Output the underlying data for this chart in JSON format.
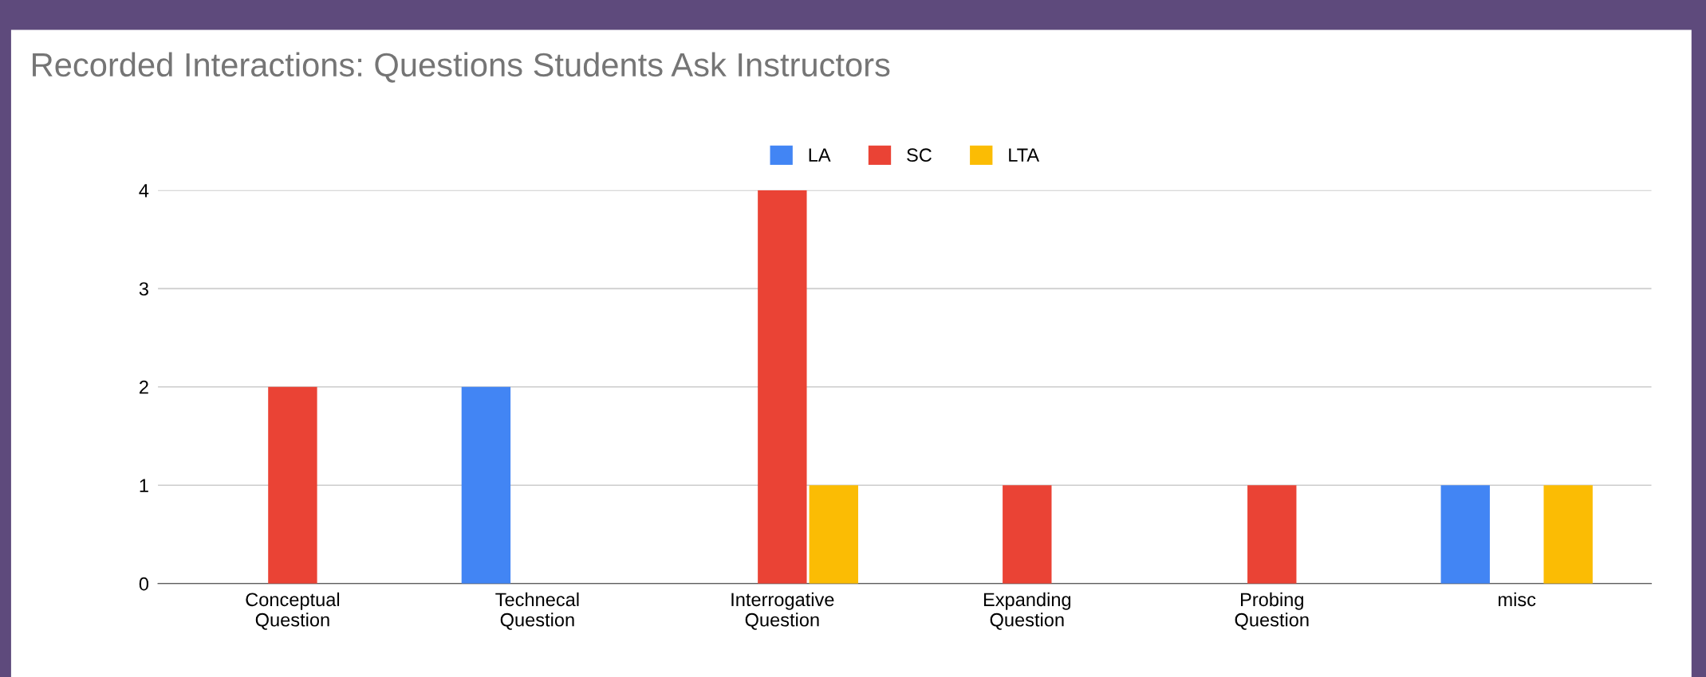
{
  "chart_data": {
    "type": "bar",
    "title": "Recorded Interactions: Questions Students Ask Instructors",
    "categories": [
      "Conceptual\nQuestion",
      "Technecal\nQuestion",
      "Interrogative\nQuestion",
      "Expanding\nQuestion",
      "Probing\nQuestion",
      "misc"
    ],
    "series": [
      {
        "name": "LA",
        "color": "#4285f4",
        "values": [
          0,
          2,
          0,
          0,
          0,
          1
        ]
      },
      {
        "name": "SC",
        "color": "#ea4335",
        "values": [
          2,
          0,
          4,
          1,
          1,
          0
        ]
      },
      {
        "name": "LTA",
        "color": "#fbbc04",
        "values": [
          0,
          0,
          1,
          0,
          0,
          1
        ]
      }
    ],
    "ylim": [
      0,
      4
    ],
    "yticks": [
      0,
      1,
      2,
      3,
      4
    ],
    "grid": "y",
    "legend": "top"
  }
}
